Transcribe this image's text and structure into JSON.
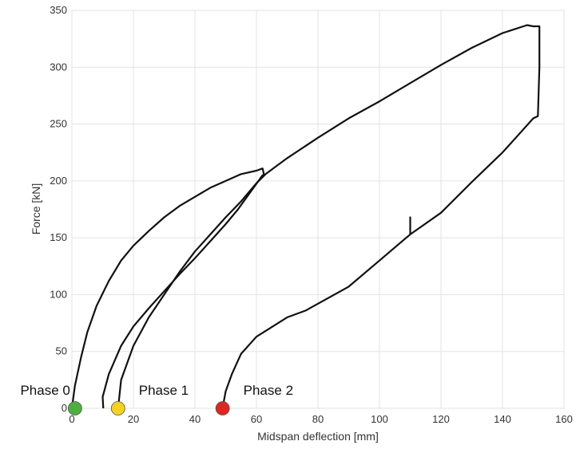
{
  "chart_data": {
    "type": "line",
    "title": "",
    "xlabel": "Midspan deflection [mm]",
    "ylabel": "Force [kN]",
    "xlim": [
      0,
      160
    ],
    "ylim": [
      0,
      350
    ],
    "xticks": [
      0,
      20,
      40,
      60,
      80,
      100,
      120,
      140,
      160
    ],
    "yticks": [
      0,
      50,
      100,
      150,
      200,
      250,
      300,
      350
    ],
    "grid": true,
    "line_color": "#111111",
    "series": [
      {
        "name": "",
        "x": [
          0,
          1,
          3,
          5,
          8,
          12,
          16,
          20,
          25,
          30,
          35,
          40,
          45,
          50,
          55,
          60,
          62,
          62.5,
          62,
          58,
          54,
          50,
          45,
          40,
          35,
          30,
          25,
          20,
          16,
          12,
          10,
          10.2
        ],
        "y": [
          0,
          20,
          45,
          67,
          90,
          112,
          130,
          143,
          156,
          168,
          178,
          186,
          194,
          200,
          206,
          209,
          211,
          205,
          205,
          190,
          175,
          162,
          147,
          132,
          118,
          103,
          88,
          72,
          55,
          30,
          10,
          0
        ]
      },
      {
        "name": "",
        "x": [
          15,
          16,
          20,
          25,
          30,
          35,
          40,
          45,
          50,
          55,
          60,
          63,
          70,
          80,
          90,
          100,
          110,
          120,
          130,
          140,
          148,
          150,
          152,
          152,
          151.5,
          150,
          145,
          140,
          130,
          120,
          110,
          110,
          110,
          100,
          90,
          78,
          76,
          70,
          60,
          55,
          52,
          50,
          49
        ],
        "y": [
          0,
          25,
          55,
          80,
          100,
          120,
          138,
          153,
          168,
          182,
          198,
          206,
          220,
          238,
          255,
          270,
          286,
          302,
          317,
          330,
          337,
          336,
          336,
          300,
          257,
          255,
          240,
          225,
          199,
          172,
          153,
          168,
          153,
          130,
          107,
          89,
          86,
          80,
          63,
          48,
          30,
          15,
          0
        ]
      }
    ],
    "annotations": [
      {
        "text": "Phase 0",
        "x": 1,
        "y": 0,
        "color": "#4caf3e"
      },
      {
        "text": "Phase 1",
        "x": 15,
        "y": 0,
        "color": "#f5d21e"
      },
      {
        "text": "Phase 2",
        "x": 49,
        "y": 0,
        "color": "#e0261f"
      }
    ]
  }
}
